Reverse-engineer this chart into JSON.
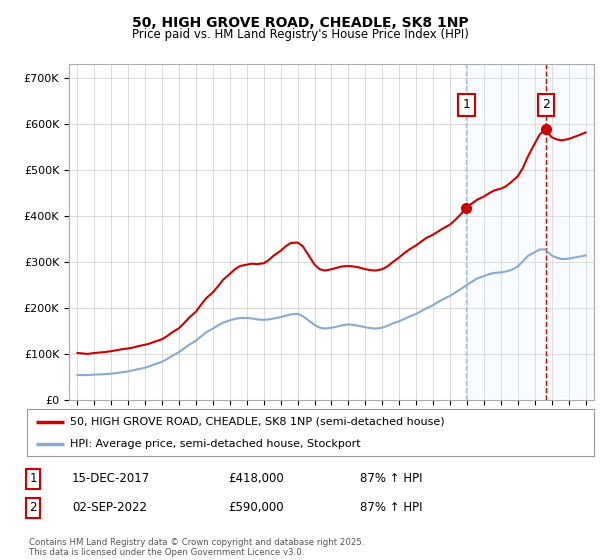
{
  "title": "50, HIGH GROVE ROAD, CHEADLE, SK8 1NP",
  "subtitle": "Price paid vs. HM Land Registry's House Price Index (HPI)",
  "ylabel_ticks": [
    "£0",
    "£100K",
    "£200K",
    "£300K",
    "£400K",
    "£500K",
    "£600K",
    "£700K"
  ],
  "ytick_vals": [
    0,
    100000,
    200000,
    300000,
    400000,
    500000,
    600000,
    700000
  ],
  "ylim": [
    0,
    730000
  ],
  "xlim_start": 1994.5,
  "xlim_end": 2025.5,
  "red_line_color": "#cc0000",
  "blue_line_color": "#88aacc",
  "vline1_color": "#aabbcc",
  "vline2_color": "#cc0000",
  "grid_color": "#cccccc",
  "bg_color": "#ffffff",
  "plot_bg": "#ffffff",
  "shade_color": "#ddeeff",
  "marker1_x": 2017.96,
  "marker1_y": 418000,
  "marker2_x": 2022.67,
  "marker2_y": 590000,
  "legend_label_red": "50, HIGH GROVE ROAD, CHEADLE, SK8 1NP (semi-detached house)",
  "legend_label_blue": "HPI: Average price, semi-detached house, Stockport",
  "annotation1_date": "15-DEC-2017",
  "annotation1_price": "£418,000",
  "annotation1_hpi": "87% ↑ HPI",
  "annotation2_date": "02-SEP-2022",
  "annotation2_price": "£590,000",
  "annotation2_hpi": "87% ↑ HPI",
  "footer": "Contains HM Land Registry data © Crown copyright and database right 2025.\nThis data is licensed under the Open Government Licence v3.0.",
  "red_x": [
    1995.0,
    1995.3,
    1995.6,
    1996.0,
    1996.3,
    1996.6,
    1997.0,
    1997.3,
    1997.6,
    1998.0,
    1998.3,
    1998.6,
    1999.0,
    1999.3,
    1999.6,
    2000.0,
    2000.3,
    2000.6,
    2001.0,
    2001.3,
    2001.6,
    2002.0,
    2002.3,
    2002.6,
    2003.0,
    2003.3,
    2003.6,
    2004.0,
    2004.3,
    2004.6,
    2005.0,
    2005.3,
    2005.6,
    2006.0,
    2006.3,
    2006.6,
    2007.0,
    2007.3,
    2007.6,
    2008.0,
    2008.3,
    2008.6,
    2009.0,
    2009.3,
    2009.6,
    2010.0,
    2010.3,
    2010.6,
    2011.0,
    2011.3,
    2011.6,
    2012.0,
    2012.3,
    2012.6,
    2013.0,
    2013.3,
    2013.6,
    2014.0,
    2014.3,
    2014.6,
    2015.0,
    2015.3,
    2015.6,
    2016.0,
    2016.3,
    2016.6,
    2017.0,
    2017.3,
    2017.6,
    2017.96,
    2018.0,
    2018.3,
    2018.6,
    2019.0,
    2019.3,
    2019.6,
    2020.0,
    2020.3,
    2020.6,
    2021.0,
    2021.3,
    2021.6,
    2022.0,
    2022.3,
    2022.67,
    2022.8,
    2023.0,
    2023.3,
    2023.6,
    2024.0,
    2024.3,
    2024.6,
    2025.0
  ],
  "red_y": [
    103000,
    102000,
    101000,
    103000,
    104000,
    105000,
    107000,
    109000,
    111000,
    113000,
    115000,
    118000,
    121000,
    124000,
    128000,
    133000,
    140000,
    148000,
    157000,
    168000,
    180000,
    193000,
    208000,
    222000,
    235000,
    248000,
    262000,
    275000,
    285000,
    292000,
    295000,
    297000,
    296000,
    298000,
    305000,
    315000,
    325000,
    335000,
    342000,
    343000,
    335000,
    318000,
    295000,
    285000,
    282000,
    285000,
    288000,
    291000,
    292000,
    291000,
    289000,
    285000,
    283000,
    282000,
    285000,
    291000,
    300000,
    311000,
    320000,
    328000,
    337000,
    345000,
    353000,
    360000,
    367000,
    374000,
    382000,
    392000,
    403000,
    418000,
    420000,
    428000,
    436000,
    443000,
    450000,
    456000,
    460000,
    465000,
    474000,
    487000,
    505000,
    530000,
    558000,
    578000,
    590000,
    580000,
    572000,
    567000,
    565000,
    568000,
    572000,
    576000,
    582000
  ],
  "blue_x": [
    1995.0,
    1995.3,
    1995.6,
    1996.0,
    1996.3,
    1996.6,
    1997.0,
    1997.3,
    1997.6,
    1998.0,
    1998.3,
    1998.6,
    1999.0,
    1999.3,
    1999.6,
    2000.0,
    2000.3,
    2000.6,
    2001.0,
    2001.3,
    2001.6,
    2002.0,
    2002.3,
    2002.6,
    2003.0,
    2003.3,
    2003.6,
    2004.0,
    2004.3,
    2004.6,
    2005.0,
    2005.3,
    2005.6,
    2006.0,
    2006.3,
    2006.6,
    2007.0,
    2007.3,
    2007.6,
    2008.0,
    2008.3,
    2008.6,
    2009.0,
    2009.3,
    2009.6,
    2010.0,
    2010.3,
    2010.6,
    2011.0,
    2011.3,
    2011.6,
    2012.0,
    2012.3,
    2012.6,
    2013.0,
    2013.3,
    2013.6,
    2014.0,
    2014.3,
    2014.6,
    2015.0,
    2015.3,
    2015.6,
    2016.0,
    2016.3,
    2016.6,
    2017.0,
    2017.3,
    2017.6,
    2018.0,
    2018.3,
    2018.6,
    2019.0,
    2019.3,
    2019.6,
    2020.0,
    2020.3,
    2020.6,
    2021.0,
    2021.3,
    2021.6,
    2022.0,
    2022.3,
    2022.6,
    2023.0,
    2023.3,
    2023.6,
    2024.0,
    2024.3,
    2024.6,
    2025.0
  ],
  "blue_y": [
    55000,
    55000,
    55000,
    56000,
    56500,
    57000,
    58000,
    59500,
    61000,
    63000,
    65500,
    68000,
    71000,
    75000,
    79000,
    84000,
    90000,
    97000,
    105000,
    113000,
    121000,
    130000,
    139000,
    148000,
    156000,
    163000,
    169000,
    174000,
    177000,
    179000,
    179000,
    178000,
    176000,
    175000,
    176000,
    178000,
    181000,
    184000,
    187000,
    188000,
    183000,
    175000,
    164000,
    158000,
    156000,
    158000,
    160000,
    163000,
    165000,
    164000,
    162000,
    159000,
    157000,
    156000,
    158000,
    162000,
    167000,
    172000,
    177000,
    182000,
    188000,
    194000,
    200000,
    207000,
    214000,
    220000,
    227000,
    234000,
    241000,
    251000,
    258000,
    265000,
    270000,
    274000,
    277000,
    278000,
    280000,
    283000,
    291000,
    302000,
    314000,
    322000,
    328000,
    328000,
    315000,
    310000,
    307000,
    308000,
    310000,
    312000,
    315000
  ]
}
